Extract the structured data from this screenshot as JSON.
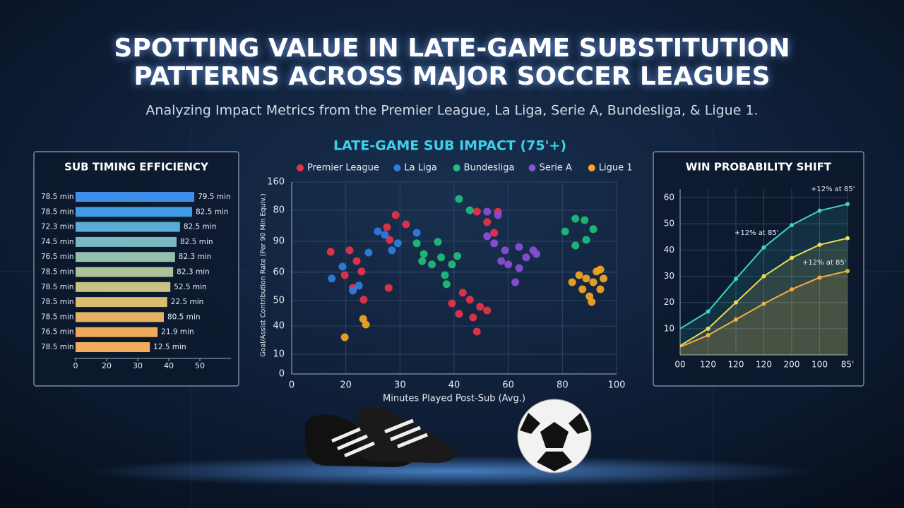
{
  "header": {
    "title_lines": [
      "SPOTTING VALUE IN LATE-GAME SUBSTITUTION",
      "PATTERNS ACROSS MAJOR SOCCER LEAGUES"
    ],
    "subtitle": "Analyzing Impact Metrics from the Premier League, La Liga, Serie A, Bundesliga, & Ligue 1."
  },
  "chart_data": [
    {
      "type": "bar",
      "orientation": "horizontal",
      "title": "SUB TIMING EFFICIENCY",
      "categories": [
        "78.5 min",
        "78.5 min",
        "72.3 min",
        "74.5 min",
        "76.5 min",
        "78.5 min",
        "78.5 min",
        "78.5 min",
        "78.5 min",
        "76.5 min",
        "78.5 min"
      ],
      "values": [
        38.2,
        37.5,
        33.6,
        32.5,
        32.0,
        31.4,
        30.5,
        29.5,
        28.4,
        26.4,
        23.9
      ],
      "annotations": [
        "79.5 min",
        "82.5 min",
        "82.5 min",
        "82.5 min",
        "82.3 min",
        "82.3 min",
        "52.5 min",
        "22.5 min",
        "80.5 min",
        "21.9 min",
        "12.5 min"
      ],
      "colors": [
        "#3f8fe8",
        "#3f9be4",
        "#5aaed6",
        "#79b9c0",
        "#93bfac",
        "#adc296",
        "#c6c384",
        "#d8bd70",
        "#e6b063",
        "#f0a95a",
        "#f2ad5c"
      ],
      "xlim": [
        0,
        50
      ],
      "xticks": [
        0,
        {
          "value": 10,
          "label": "20"
        },
        {
          "value": 20,
          "label": "30"
        },
        {
          "value": 30,
          "label": "40"
        },
        {
          "value": 40,
          "label": "50"
        }
      ]
    },
    {
      "type": "scatter",
      "title": "LATE-GAME SUB IMPACT (75'+)",
      "xlabel": "Minutes Played Post-Sub (Avg.)",
      "ylabel": "Goal/Assist Contribution Rate (Per 90 Min Equiv.)",
      "xlim": [
        0,
        60
      ],
      "ylim": [
        0,
        68
      ],
      "grid": true,
      "xticks": [
        0,
        {
          "value": 10,
          "label": "20"
        },
        {
          "value": 20,
          "label": "30"
        },
        {
          "value": 30,
          "label": "40"
        },
        {
          "value": 40,
          "label": "60"
        },
        {
          "value": 50,
          "label": "80"
        },
        {
          "value": 60,
          "label": "100"
        }
      ],
      "yticks": [
        0,
        {
          "value": 7,
          "label": "10"
        },
        {
          "value": 17,
          "label": "40"
        },
        {
          "value": 26,
          "label": "50"
        },
        {
          "value": 36,
          "label": "60"
        },
        {
          "value": 47,
          "label": "90"
        },
        {
          "value": 58,
          "label": "80"
        },
        {
          "value": 68,
          "label": "160"
        }
      ],
      "series": [
        {
          "name": "Premier League",
          "color": "#e8334a",
          "x": [
            7.2,
            10.7,
            12.0,
            9.8,
            12.9,
            11.3,
            13.3,
            17.6,
            19.2,
            21.1,
            18.1,
            17.9,
            29.6,
            31.6,
            32.9,
            34.8,
            30.9,
            33.5,
            34.2,
            36.1,
            34.2,
            36.1,
            38.1,
            37.4
          ],
          "values": [
            43.3,
            43.8,
            40,
            35,
            36.3,
            30.5,
            26.3,
            52,
            56.3,
            53,
            47.5,
            30.5,
            25,
            28.8,
            26.3,
            23.8,
            21.3,
            20,
            15,
            22.5,
            57.5,
            53.8,
            57.5,
            50
          ]
        },
        {
          "name": "La Liga",
          "color": "#2f7de1",
          "x": [
            7.4,
            9.4,
            12.4,
            14.2,
            18.5,
            17.2,
            23.1,
            19.6,
            15.9,
            11.3
          ],
          "values": [
            33.8,
            38,
            31.3,
            43,
            43.8,
            49.3,
            50,
            46.3,
            50.5,
            29.5
          ]
        },
        {
          "name": "Bundesliga",
          "color": "#1fbf7a",
          "x": [
            23.1,
            24.4,
            25.9,
            27.6,
            27,
            29.6,
            28.3,
            28.6,
            24.1,
            30.6,
            30.9,
            32.9,
            50.5,
            52.4,
            54.1,
            55.7,
            54.4,
            52.4
          ],
          "values": [
            46.3,
            42.5,
            38.8,
            41.3,
            46.8,
            38.8,
            35,
            31.8,
            40,
            41.8,
            62,
            58,
            50.5,
            55,
            54.5,
            51.3,
            47.5,
            45.5
          ]
        },
        {
          "name": "Serie A",
          "color": "#8a4fd6",
          "x": [
            37.4,
            39.4,
            42,
            43.3,
            44.6,
            40,
            42,
            38.7,
            36.1,
            45.2,
            41.3,
            38.1,
            36.1
          ],
          "values": [
            46.3,
            43.8,
            45,
            41.3,
            43.8,
            38.8,
            37.5,
            40,
            48.8,
            42.5,
            32.5,
            56.3,
            57.5
          ]
        },
        {
          "name": "Ligue 1",
          "color": "#f5a623",
          "x": [
            51.8,
            53.1,
            54.4,
            55.7,
            57,
            53.7,
            55,
            56.3,
            57.6,
            55.4,
            57,
            9.8,
            13.2,
            13.7
          ],
          "values": [
            32.5,
            35,
            33.8,
            32.5,
            30,
            30,
            27.5,
            36.3,
            33.8,
            25.5,
            37,
            13,
            19.5,
            17.5
          ]
        }
      ]
    },
    {
      "type": "line",
      "title": "WIN PROBABILITY SHIFT",
      "categories": [
        "00",
        "120",
        "120",
        "120",
        "200",
        "100",
        "85'"
      ],
      "ylim": [
        0,
        60
      ],
      "yticks": [
        10,
        20,
        30,
        40,
        50,
        60
      ],
      "grid": true,
      "annotations": [
        "+12% at 85'",
        "+12% at 85'",
        "+12% at 85'"
      ],
      "series": [
        {
          "color": "#3fd3c3",
          "values": [
            10,
            16.5,
            29,
            41,
            49.5,
            55,
            57.5
          ]
        },
        {
          "color": "#e9dc5a",
          "values": [
            3.5,
            10,
            20,
            30,
            37,
            42,
            44.5
          ]
        },
        {
          "color": "#f2ae45",
          "values": [
            3,
            7.5,
            13.5,
            19.5,
            25,
            29.5,
            32
          ]
        }
      ]
    }
  ]
}
